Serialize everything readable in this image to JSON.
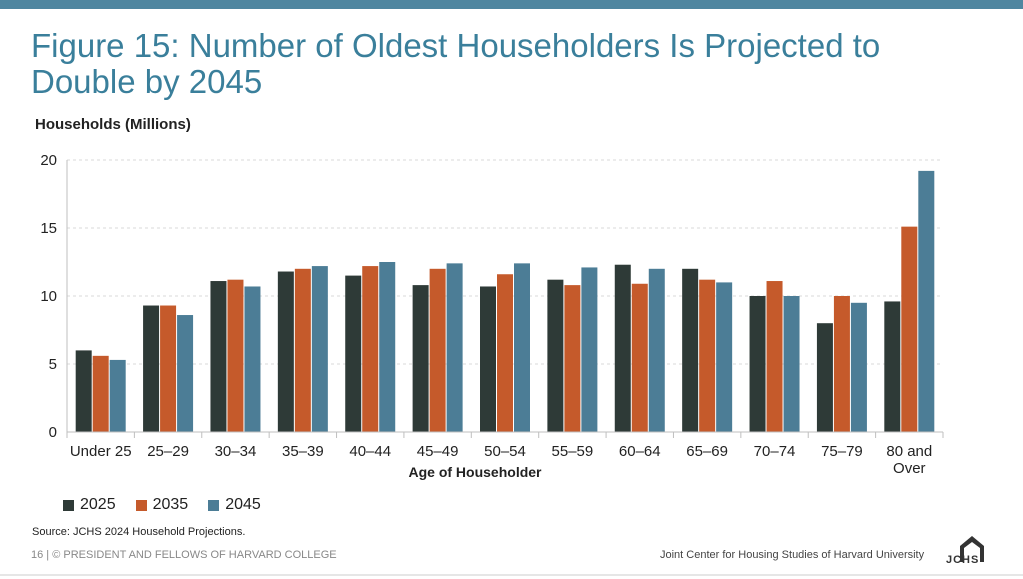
{
  "title": "Figure 15: Number of Oldest Householders Is Projected to Double by 2045",
  "y_axis_title": "Households (Millions)",
  "x_axis_title": "Age of Householder",
  "source": "Source: JCHS 2024 Household Projections.",
  "footer_left": "16 | © PRESIDENT AND FELLOWS OF HARVARD COLLEGE",
  "footer_right": "Joint Center for Housing Studies of Harvard University",
  "logo_text": "JCHS",
  "colors": {
    "accent": "#4f86a0",
    "s2025": "#2e3a37",
    "s2035": "#c55a2b",
    "s2045": "#4c7d96"
  },
  "chart_data": {
    "type": "bar",
    "title": "Figure 15: Number of Oldest Householders Is Projected to Double by 2045",
    "xlabel": "Age of Householder",
    "ylabel": "Households (Millions)",
    "ylim": [
      0,
      20
    ],
    "yticks": [
      0,
      5,
      10,
      15,
      20
    ],
    "grid": true,
    "legend_position": "bottom-left",
    "categories": [
      "Under 25",
      "25–29",
      "30–34",
      "35–39",
      "40–44",
      "45–49",
      "50–54",
      "55–59",
      "60–64",
      "65–69",
      "70–74",
      "75–79",
      "80 and Over"
    ],
    "series": [
      {
        "name": "2025",
        "color": "#2e3a37",
        "values": [
          6.0,
          9.3,
          11.1,
          11.8,
          11.5,
          10.8,
          10.7,
          11.2,
          12.3,
          12.0,
          10.0,
          8.0,
          9.6
        ]
      },
      {
        "name": "2035",
        "color": "#c55a2b",
        "values": [
          5.6,
          9.3,
          11.2,
          12.0,
          12.2,
          12.0,
          11.6,
          10.8,
          10.9,
          11.2,
          11.1,
          10.0,
          15.1
        ]
      },
      {
        "name": "2045",
        "color": "#4c7d96",
        "values": [
          5.3,
          8.6,
          10.7,
          12.2,
          12.5,
          12.4,
          12.4,
          12.1,
          12.0,
          11.0,
          10.0,
          9.5,
          19.2
        ]
      }
    ]
  }
}
